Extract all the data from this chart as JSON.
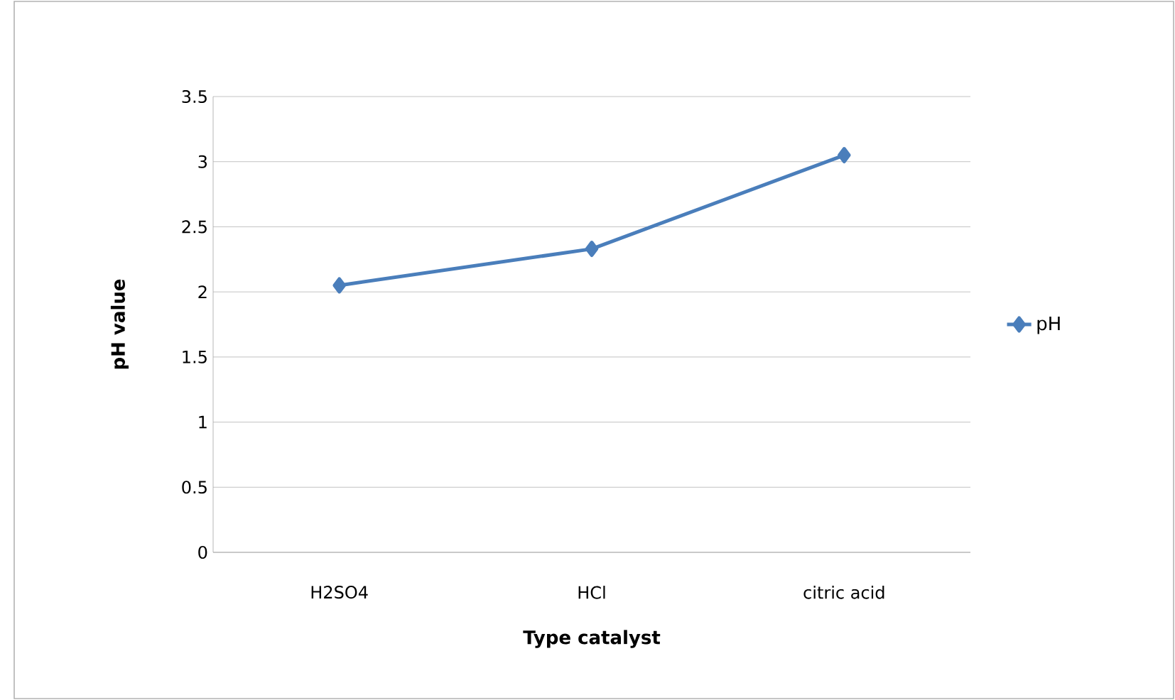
{
  "chart_data": {
    "type": "line",
    "xlabel": "Type catalyst",
    "ylabel": "pH value",
    "categories": [
      "H2SO4",
      "HCl",
      "citric acid"
    ],
    "series": [
      {
        "name": "pH",
        "color": "#4a7ebb",
        "values": [
          2.05,
          2.33,
          3.05
        ]
      }
    ],
    "ylim": [
      0,
      3.5
    ],
    "yticks": [
      0,
      0.5,
      1,
      1.5,
      2,
      2.5,
      3,
      3.5
    ],
    "grid": "y",
    "legend": "right",
    "marker": "diamond",
    "line_style": "solid"
  }
}
